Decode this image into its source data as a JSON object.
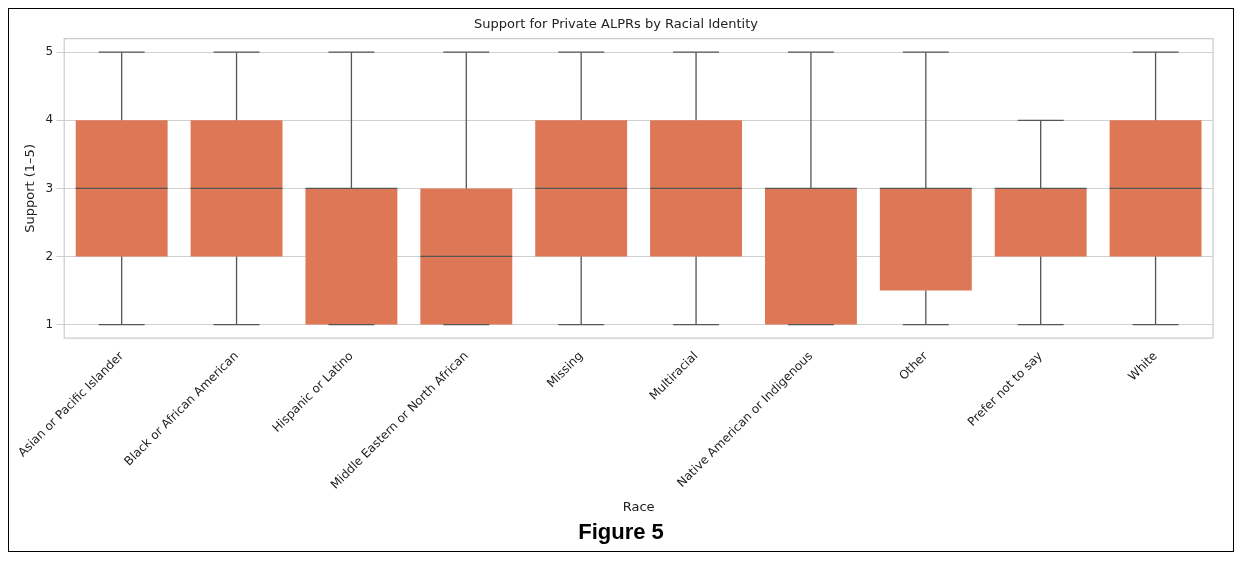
{
  "chart_data": {
    "type": "box",
    "title": "Support for Private ALPRs by Racial Identity",
    "xlabel": "Race",
    "ylabel": "Support (1–5)",
    "categories": [
      "Asian or Pacific Islander",
      "Black or African American",
      "Hispanic or Latino",
      "Middle Eastern or North African",
      "Missing",
      "Multiracial",
      "Native American or Indigenous",
      "Other",
      "Prefer not to say",
      "White"
    ],
    "boxes": [
      {
        "low": 1,
        "q1": 2,
        "median": 3,
        "q3": 4,
        "high": 5
      },
      {
        "low": 1,
        "q1": 2,
        "median": 3,
        "q3": 4,
        "high": 5
      },
      {
        "low": 1,
        "q1": 1,
        "median": 3,
        "q3": 3,
        "high": 5
      },
      {
        "low": 1,
        "q1": 1,
        "median": 2,
        "q3": 3,
        "high": 5
      },
      {
        "low": 1,
        "q1": 2,
        "median": 3,
        "q3": 4,
        "high": 5
      },
      {
        "low": 1,
        "q1": 2,
        "median": 3,
        "q3": 4,
        "high": 5
      },
      {
        "low": 1,
        "q1": 1,
        "median": 3,
        "q3": 3,
        "high": 5
      },
      {
        "low": 1,
        "q1": 1.5,
        "median": 3,
        "q3": 3,
        "high": 5
      },
      {
        "low": 1,
        "q1": 2,
        "median": 3,
        "q3": 3,
        "high": 4
      },
      {
        "low": 1,
        "q1": 2,
        "median": 3,
        "q3": 4,
        "high": 5
      }
    ],
    "color": "#dd7755",
    "ylim": [
      0.8,
      5.2
    ],
    "yticks": [
      1,
      2,
      3,
      4,
      5
    ],
    "grid": "y",
    "legend": false,
    "annotations": [
      "Figure 5"
    ]
  }
}
